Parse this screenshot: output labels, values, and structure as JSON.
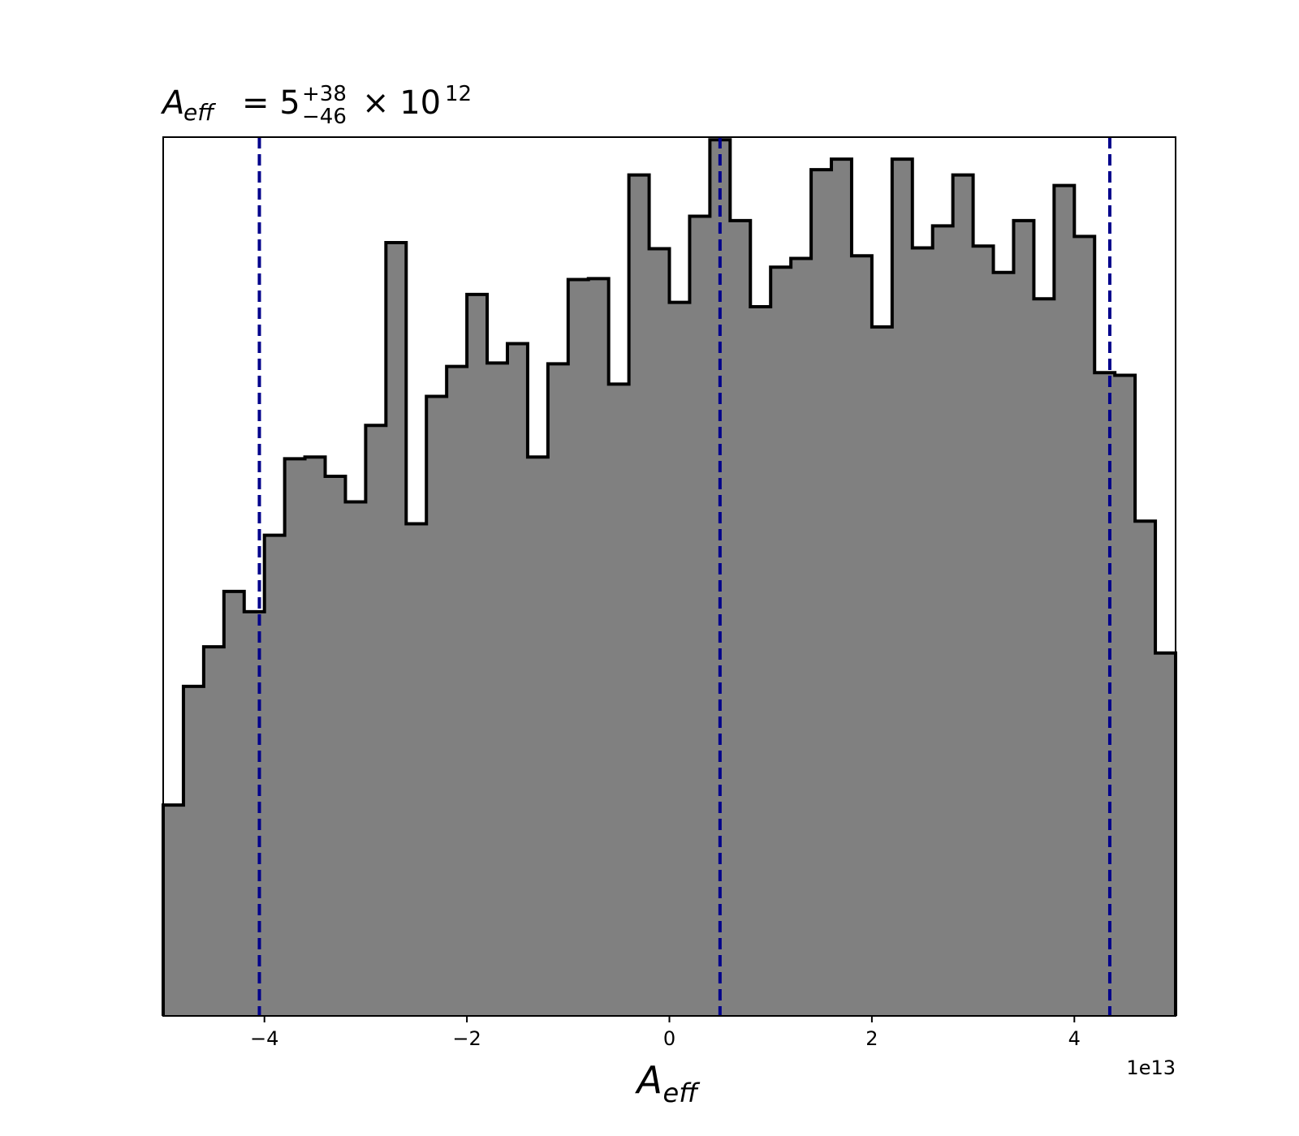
{
  "chart_data": {
    "type": "histogram",
    "title": {
      "symbol": "A",
      "symbol_sub": "eff",
      "equals": "= 5",
      "sup": "+38",
      "sub": "−46",
      "times": "× 10",
      "exponent": "12"
    },
    "xlabel": {
      "symbol": "A",
      "sub": "eff"
    },
    "offset_text": "1e13",
    "xlim": [
      -5.0,
      5.0
    ],
    "ylim": [
      0,
      1
    ],
    "x_ticks": [
      -4,
      -2,
      0,
      2,
      4
    ],
    "x_tick_labels": [
      "−4",
      "−2",
      "0",
      "2",
      "4"
    ],
    "y_axis_shown": false,
    "grid": false,
    "bin_edges": [
      -5.0,
      -4.8,
      -4.6,
      -4.4,
      -4.2,
      -4.0,
      -3.8,
      -3.6,
      -3.4,
      -3.2,
      -3.0,
      -2.8,
      -2.6,
      -2.4,
      -2.2,
      -2.0,
      -1.8,
      -1.6,
      -1.4,
      -1.2,
      -1.0,
      -0.8,
      -0.6,
      -0.4,
      -0.2,
      0.0,
      0.2,
      0.4,
      0.6,
      0.8,
      1.0,
      1.2,
      1.4,
      1.6,
      1.8,
      2.0,
      2.2,
      2.4,
      2.6,
      2.8,
      3.0,
      3.2,
      3.4,
      3.6,
      3.8,
      4.0,
      4.2,
      4.4,
      4.6,
      4.8,
      5.0
    ],
    "counts": [
      0.24,
      0.375,
      0.42,
      0.483,
      0.46,
      0.547,
      0.634,
      0.636,
      0.614,
      0.585,
      0.672,
      0.88,
      0.56,
      0.705,
      0.739,
      0.821,
      0.743,
      0.765,
      0.636,
      0.742,
      0.838,
      0.839,
      0.719,
      0.957,
      0.873,
      0.812,
      0.91,
      0.997,
      0.905,
      0.807,
      0.852,
      0.862,
      0.963,
      0.975,
      0.865,
      0.784,
      0.975,
      0.874,
      0.899,
      0.957,
      0.876,
      0.846,
      0.905,
      0.816,
      0.945,
      0.887,
      0.732,
      0.729,
      0.563,
      0.413
    ],
    "fill_color": "#808080",
    "edge_color": "#000000",
    "quantile_lines": {
      "values": [
        -4.05,
        0.5,
        4.35
      ],
      "color": "#00008b",
      "style": "dashed"
    }
  }
}
